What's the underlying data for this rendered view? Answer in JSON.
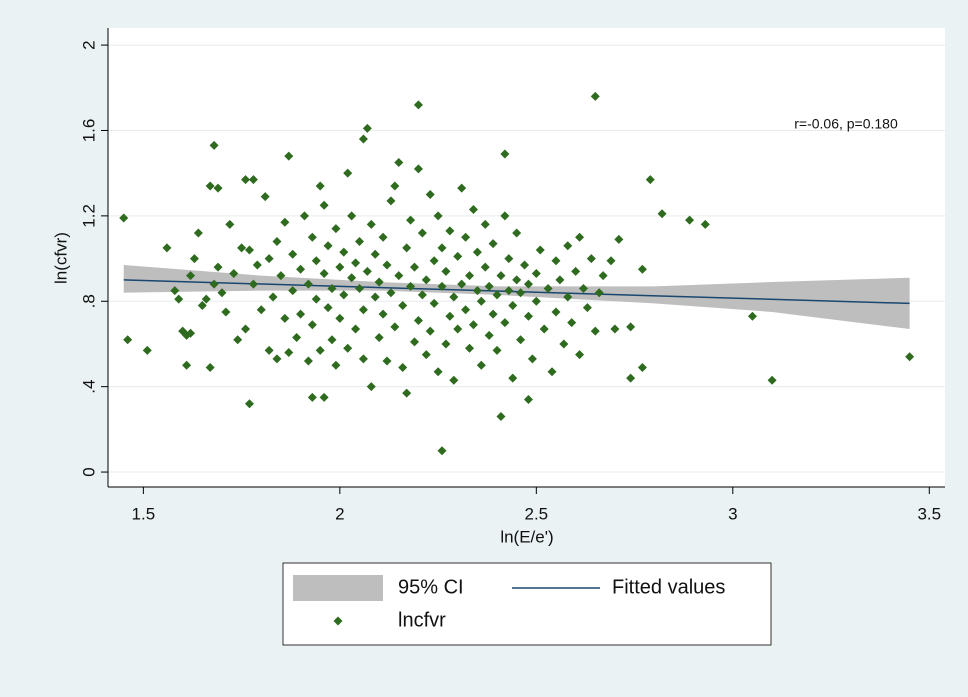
{
  "chart_data": {
    "type": "scatter",
    "annotation": "r=-0.06, p=0.180",
    "xlabel": "ln(E/e')",
    "ylabel": "ln(cfvr)",
    "xlim": [
      1.41,
      3.54
    ],
    "ylim": [
      -0.07,
      2.08
    ],
    "xticks": [
      1.5,
      2,
      2.5,
      3,
      3.5
    ],
    "yticks": [
      0,
      {
        "value": 0.4,
        "label": ".4"
      },
      {
        "value": 0.8,
        "label": ".8"
      },
      1.2,
      1.6,
      2
    ],
    "grid": true,
    "legend": "bottom",
    "series": [
      {
        "name": "95% CI",
        "type": "area",
        "color": "#bebebe",
        "x": [
          1.45,
          1.8,
          2.1,
          2.4,
          2.8,
          3.1,
          3.45
        ],
        "lower": [
          0.84,
          0.85,
          0.85,
          0.83,
          0.79,
          0.75,
          0.67
        ],
        "upper": [
          0.97,
          0.92,
          0.89,
          0.87,
          0.87,
          0.89,
          0.91
        ]
      },
      {
        "name": "Fitted values",
        "type": "line",
        "color": "#1a476f",
        "x": [
          1.45,
          3.45
        ],
        "values": [
          0.9,
          0.79
        ]
      },
      {
        "name": "lncfvr",
        "type": "scatter",
        "color": "#2e6b1e",
        "x": [
          1.45,
          1.46,
          1.51,
          1.68,
          1.87,
          2.07,
          2.06,
          2.2,
          2.65,
          2.42,
          2.79,
          2.82,
          2.89,
          2.93,
          3.05,
          3.1,
          3.45,
          2.26,
          2.41,
          1.77,
          1.93,
          1.96,
          2.48,
          2.74,
          2.77,
          2.7,
          2.74,
          2.77,
          2.71,
          2.69,
          1.56,
          1.58,
          1.59,
          1.6,
          1.61,
          1.61,
          1.62,
          1.62,
          1.63,
          1.64,
          1.65,
          1.66,
          1.67,
          1.67,
          1.68,
          1.69,
          1.69,
          1.7,
          1.71,
          1.72,
          1.73,
          1.74,
          1.75,
          1.76,
          1.76,
          1.77,
          1.78,
          1.78,
          1.79,
          1.8,
          1.81,
          1.82,
          1.82,
          1.83,
          1.84,
          1.84,
          1.85,
          1.86,
          1.86,
          1.87,
          1.88,
          1.88,
          1.89,
          1.9,
          1.9,
          1.91,
          1.92,
          1.92,
          1.93,
          1.93,
          1.94,
          1.94,
          1.95,
          1.95,
          1.96,
          1.96,
          1.97,
          1.97,
          1.98,
          1.98,
          1.99,
          1.99,
          2.0,
          2.0,
          2.01,
          2.01,
          2.02,
          2.02,
          2.03,
          2.03,
          2.04,
          2.04,
          2.05,
          2.05,
          2.06,
          2.06,
          2.07,
          2.08,
          2.08,
          2.09,
          2.09,
          2.1,
          2.1,
          2.11,
          2.11,
          2.12,
          2.12,
          2.13,
          2.13,
          2.14,
          2.14,
          2.15,
          2.15,
          2.16,
          2.16,
          2.17,
          2.17,
          2.18,
          2.18,
          2.19,
          2.19,
          2.2,
          2.2,
          2.21,
          2.21,
          2.22,
          2.22,
          2.23,
          2.23,
          2.24,
          2.24,
          2.25,
          2.25,
          2.26,
          2.26,
          2.27,
          2.27,
          2.28,
          2.28,
          2.29,
          2.29,
          2.3,
          2.3,
          2.31,
          2.31,
          2.32,
          2.32,
          2.33,
          2.33,
          2.34,
          2.34,
          2.35,
          2.35,
          2.36,
          2.36,
          2.37,
          2.37,
          2.38,
          2.38,
          2.39,
          2.39,
          2.4,
          2.4,
          2.41,
          2.42,
          2.42,
          2.43,
          2.43,
          2.44,
          2.44,
          2.45,
          2.45,
          2.46,
          2.46,
          2.47,
          2.48,
          2.48,
          2.49,
          2.5,
          2.5,
          2.51,
          2.52,
          2.53,
          2.54,
          2.55,
          2.55,
          2.56,
          2.57,
          2.58,
          2.58,
          2.59,
          2.6,
          2.61,
          2.61,
          2.62,
          2.63,
          2.64,
          2.65,
          2.66,
          2.67
        ],
        "values": [
          1.19,
          0.62,
          0.57,
          1.53,
          1.48,
          1.61,
          1.56,
          1.72,
          1.76,
          1.49,
          1.37,
          1.21,
          1.18,
          1.16,
          0.73,
          0.43,
          0.54,
          0.1,
          0.26,
          0.32,
          0.35,
          0.35,
          0.34,
          0.44,
          0.49,
          0.67,
          0.68,
          0.95,
          1.09,
          0.99,
          1.05,
          0.85,
          0.81,
          0.66,
          0.64,
          0.5,
          0.92,
          0.65,
          1.0,
          1.12,
          0.78,
          0.81,
          0.49,
          1.34,
          0.88,
          1.33,
          0.96,
          0.84,
          0.75,
          1.16,
          0.93,
          0.62,
          1.05,
          0.67,
          1.37,
          1.04,
          1.37,
          0.88,
          0.97,
          0.76,
          1.29,
          0.57,
          1.0,
          0.82,
          0.53,
          1.08,
          0.92,
          1.17,
          0.72,
          0.56,
          1.02,
          0.85,
          0.63,
          0.95,
          0.74,
          1.2,
          0.88,
          0.52,
          1.1,
          0.69,
          0.99,
          0.81,
          1.34,
          0.57,
          1.25,
          0.93,
          0.77,
          1.06,
          0.62,
          0.86,
          1.14,
          0.5,
          0.96,
          0.72,
          1.03,
          0.83,
          1.4,
          0.58,
          0.91,
          1.2,
          0.67,
          0.98,
          0.86,
          1.08,
          0.76,
          0.53,
          0.94,
          1.16,
          0.4,
          0.82,
          1.02,
          0.89,
          0.63,
          0.74,
          1.1,
          0.97,
          0.52,
          1.27,
          0.84,
          0.68,
          1.34,
          0.92,
          1.45,
          0.49,
          0.78,
          1.05,
          0.37,
          0.87,
          1.18,
          0.61,
          0.96,
          0.71,
          1.42,
          0.83,
          1.12,
          0.55,
          0.9,
          1.3,
          0.66,
          0.99,
          0.79,
          1.2,
          0.47,
          0.87,
          1.05,
          0.6,
          0.94,
          1.13,
          0.73,
          0.82,
          0.43,
          1.01,
          0.67,
          1.33,
          0.88,
          0.76,
          1.1,
          0.58,
          0.92,
          1.23,
          0.69,
          0.85,
          1.03,
          0.5,
          0.8,
          0.96,
          1.16,
          0.64,
          0.87,
          0.74,
          1.07,
          0.83,
          0.57,
          0.92,
          1.2,
          0.7,
          0.85,
          1.0,
          0.44,
          0.78,
          0.9,
          1.12,
          0.62,
          0.84,
          0.97,
          0.73,
          0.88,
          0.53,
          0.93,
          0.8,
          1.04,
          0.67,
          0.86,
          0.47,
          0.99,
          0.75,
          0.9,
          0.6,
          1.06,
          0.82,
          0.7,
          0.94,
          1.1,
          0.55,
          0.86,
          0.77,
          1.0,
          0.66,
          0.84,
          0.92
        ]
      }
    ]
  }
}
